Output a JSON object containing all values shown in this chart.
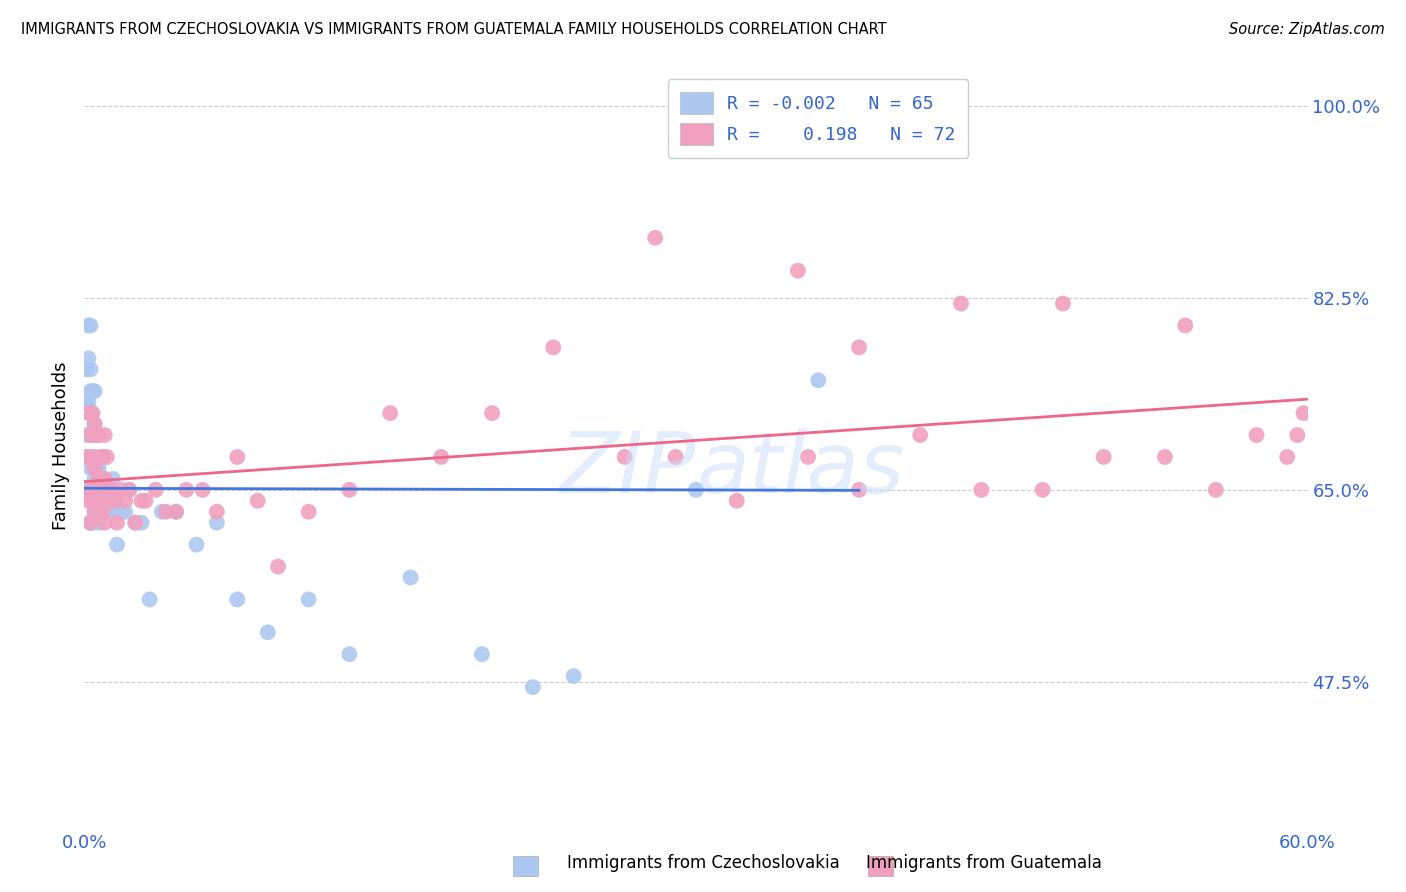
{
  "title": "IMMIGRANTS FROM CZECHOSLOVAKIA VS IMMIGRANTS FROM GUATEMALA FAMILY HOUSEHOLDS CORRELATION CHART",
  "source": "Source: ZipAtlas.com",
  "ylabel": "Family Households",
  "ytick_labels": [
    "47.5%",
    "65.0%",
    "82.5%",
    "100.0%"
  ],
  "ytick_values": [
    0.475,
    0.65,
    0.825,
    1.0
  ],
  "xmin": 0.0,
  "xmax": 0.6,
  "ymin": 0.34,
  "ymax": 1.04,
  "color_blue": "#adc8f0",
  "color_pink": "#f0a0be",
  "color_blue_line": "#4477dd",
  "color_pink_line": "#ee6688",
  "color_blue_text": "#3366cc",
  "watermark_text": "ZIPAtlas",
  "blue_scatter_x": [
    0.001,
    0.001,
    0.001,
    0.002,
    0.002,
    0.002,
    0.002,
    0.002,
    0.002,
    0.003,
    0.003,
    0.003,
    0.003,
    0.003,
    0.003,
    0.003,
    0.003,
    0.004,
    0.004,
    0.004,
    0.004,
    0.004,
    0.005,
    0.005,
    0.005,
    0.005,
    0.005,
    0.006,
    0.006,
    0.006,
    0.006,
    0.007,
    0.007,
    0.007,
    0.008,
    0.008,
    0.009,
    0.01,
    0.01,
    0.011,
    0.012,
    0.013,
    0.014,
    0.015,
    0.016,
    0.018,
    0.02,
    0.022,
    0.025,
    0.028,
    0.032,
    0.038,
    0.045,
    0.055,
    0.065,
    0.075,
    0.09,
    0.11,
    0.13,
    0.16,
    0.195,
    0.22,
    0.24,
    0.3,
    0.36
  ],
  "blue_scatter_y": [
    0.7,
    0.73,
    0.76,
    0.65,
    0.68,
    0.7,
    0.73,
    0.77,
    0.8,
    0.62,
    0.65,
    0.67,
    0.7,
    0.72,
    0.74,
    0.76,
    0.8,
    0.62,
    0.65,
    0.68,
    0.7,
    0.74,
    0.63,
    0.66,
    0.68,
    0.71,
    0.74,
    0.63,
    0.65,
    0.67,
    0.7,
    0.62,
    0.65,
    0.67,
    0.63,
    0.66,
    0.64,
    0.63,
    0.66,
    0.65,
    0.63,
    0.64,
    0.66,
    0.63,
    0.6,
    0.63,
    0.63,
    0.65,
    0.62,
    0.62,
    0.55,
    0.63,
    0.63,
    0.6,
    0.62,
    0.55,
    0.52,
    0.55,
    0.5,
    0.57,
    0.5,
    0.47,
    0.48,
    0.65,
    0.75
  ],
  "pink_scatter_x": [
    0.001,
    0.002,
    0.002,
    0.003,
    0.003,
    0.003,
    0.004,
    0.004,
    0.004,
    0.005,
    0.005,
    0.005,
    0.006,
    0.006,
    0.007,
    0.007,
    0.008,
    0.008,
    0.009,
    0.009,
    0.01,
    0.01,
    0.01,
    0.011,
    0.011,
    0.012,
    0.013,
    0.014,
    0.015,
    0.016,
    0.018,
    0.02,
    0.022,
    0.025,
    0.028,
    0.03,
    0.035,
    0.04,
    0.045,
    0.05,
    0.058,
    0.065,
    0.075,
    0.085,
    0.095,
    0.11,
    0.13,
    0.15,
    0.175,
    0.2,
    0.23,
    0.265,
    0.29,
    0.32,
    0.355,
    0.38,
    0.41,
    0.44,
    0.47,
    0.5,
    0.53,
    0.555,
    0.575,
    0.59,
    0.595,
    0.598,
    0.43,
    0.38,
    0.28,
    0.35,
    0.48,
    0.54
  ],
  "pink_scatter_y": [
    0.68,
    0.64,
    0.72,
    0.62,
    0.65,
    0.7,
    0.64,
    0.68,
    0.72,
    0.63,
    0.67,
    0.71,
    0.65,
    0.7,
    0.66,
    0.7,
    0.64,
    0.68,
    0.63,
    0.68,
    0.62,
    0.66,
    0.7,
    0.64,
    0.68,
    0.65,
    0.64,
    0.65,
    0.64,
    0.62,
    0.65,
    0.64,
    0.65,
    0.62,
    0.64,
    0.64,
    0.65,
    0.63,
    0.63,
    0.65,
    0.65,
    0.63,
    0.68,
    0.64,
    0.58,
    0.63,
    0.65,
    0.72,
    0.68,
    0.72,
    0.78,
    0.68,
    0.68,
    0.64,
    0.68,
    0.65,
    0.7,
    0.65,
    0.65,
    0.68,
    0.68,
    0.65,
    0.7,
    0.68,
    0.7,
    0.72,
    0.82,
    0.78,
    0.88,
    0.85,
    0.82,
    0.8
  ]
}
